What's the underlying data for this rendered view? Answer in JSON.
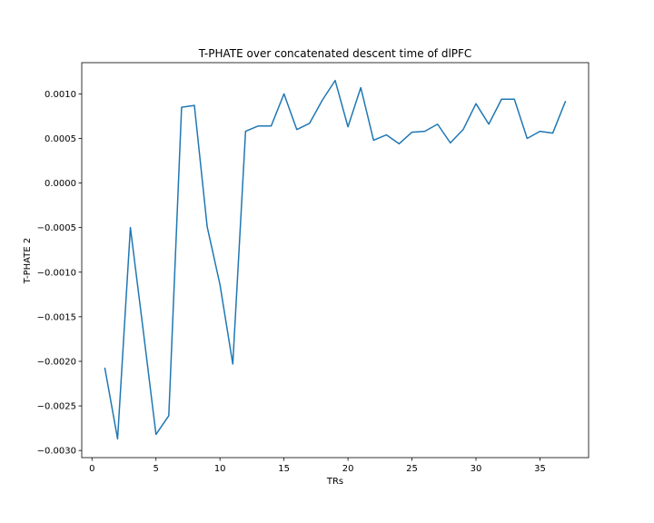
{
  "chart_data": {
    "type": "line",
    "title": "T-PHATE over concatenated descent time of dlPFC",
    "xlabel": "TRs",
    "ylabel": "T-PHATE 2",
    "xlim": [
      -0.8,
      38.8
    ],
    "ylim": [
      -0.00308,
      0.00135
    ],
    "xticks": [
      0,
      5,
      10,
      15,
      20,
      25,
      30,
      35
    ],
    "xtick_labels": [
      "0",
      "5",
      "10",
      "15",
      "20",
      "25",
      "30",
      "35"
    ],
    "yticks": [
      -0.003,
      -0.0025,
      -0.002,
      -0.0015,
      -0.001,
      -0.0005,
      0.0,
      0.0005,
      0.001
    ],
    "ytick_labels": [
      "−0.0030",
      "−0.0025",
      "−0.0020",
      "−0.0015",
      "−0.0010",
      "−0.0005",
      "0.0000",
      "0.0005",
      "0.0010"
    ],
    "grid": false,
    "line_color": "#1f77b4",
    "series": [
      {
        "x": [
          1,
          2,
          3,
          4,
          5,
          6,
          7,
          8,
          9,
          10,
          11,
          12,
          13,
          14,
          15,
          16,
          17,
          18,
          19,
          20,
          21,
          22,
          23,
          24,
          25,
          26,
          27,
          28,
          29,
          30,
          31,
          32,
          33,
          34,
          35,
          36,
          37
        ],
        "values": [
          -0.00207,
          -0.00287,
          -0.0005,
          -0.00165,
          -0.00282,
          -0.00261,
          0.00085,
          0.00087,
          -0.00049,
          -0.00114,
          -0.00203,
          0.00058,
          0.00064,
          0.00064,
          0.001,
          0.0006,
          0.00067,
          0.00093,
          0.00115,
          0.00063,
          0.00107,
          0.00048,
          0.00054,
          0.00044,
          0.00057,
          0.00058,
          0.00066,
          0.00045,
          0.0006,
          0.00089,
          0.00066,
          0.00094,
          0.00094,
          0.0005,
          0.00058,
          0.00056,
          0.00092
        ]
      }
    ]
  }
}
